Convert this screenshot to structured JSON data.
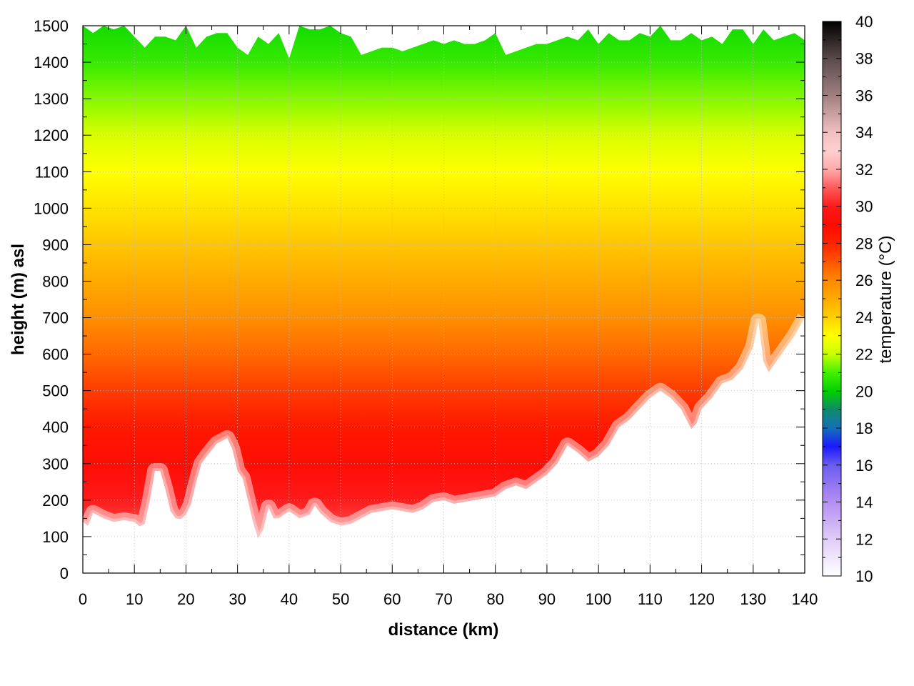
{
  "chart_data": {
    "type": "heatmap",
    "title": "",
    "xlabel": "distance (km)",
    "ylabel": "height (m) asl",
    "colorbar_label": "temperature (°C)",
    "xlim": [
      0,
      140
    ],
    "ylim": [
      0,
      1500
    ],
    "clim": [
      10,
      40
    ],
    "x_ticks": [
      0,
      10,
      20,
      30,
      40,
      50,
      60,
      70,
      80,
      90,
      100,
      110,
      120,
      130,
      140
    ],
    "y_ticks": [
      0,
      100,
      200,
      300,
      400,
      500,
      600,
      700,
      800,
      900,
      1000,
      1100,
      1200,
      1300,
      1400,
      1500
    ],
    "colorbar_ticks": [
      10,
      12,
      14,
      16,
      18,
      20,
      22,
      24,
      26,
      28,
      30,
      32,
      34,
      36,
      38,
      40
    ],
    "grid": true,
    "lower_boundary": {
      "distance_km": [
        0,
        1,
        2,
        4,
        6,
        8,
        10,
        11,
        12,
        13,
        14,
        15,
        16,
        17,
        18,
        19,
        20,
        21,
        22,
        23,
        24,
        26,
        28,
        29,
        30,
        31,
        32,
        33,
        34,
        35,
        36,
        37,
        38,
        39,
        40,
        42,
        44,
        45,
        46,
        48,
        50,
        52,
        54,
        56,
        58,
        60,
        62,
        64,
        66,
        68,
        70,
        72,
        74,
        76,
        78,
        80,
        82,
        84,
        86,
        88,
        90,
        92,
        94,
        96,
        98,
        100,
        102,
        104,
        106,
        108,
        110,
        112,
        114,
        116,
        118,
        119,
        120,
        122,
        124,
        126,
        128,
        130,
        131,
        132,
        133,
        134,
        136,
        138,
        140
      ],
      "height_m": [
        140,
        130,
        165,
        150,
        140,
        145,
        140,
        128,
        135,
        200,
        280,
        280,
        230,
        170,
        150,
        148,
        160,
        190,
        250,
        300,
        320,
        355,
        370,
        340,
        280,
        260,
        200,
        140,
        95,
        120,
        180,
        150,
        150,
        160,
        170,
        150,
        160,
        185,
        165,
        140,
        130,
        135,
        150,
        165,
        170,
        175,
        170,
        165,
        175,
        195,
        200,
        190,
        195,
        200,
        205,
        210,
        230,
        240,
        230,
        250,
        270,
        300,
        350,
        330,
        305,
        320,
        350,
        400,
        420,
        450,
        480,
        500,
        480,
        450,
        395,
        410,
        450,
        480,
        520,
        530,
        560,
        620,
        690,
        580,
        550,
        570,
        610,
        650,
        700
      ]
    },
    "upper_boundary": {
      "distance_km": [
        0,
        2,
        4,
        6,
        8,
        10,
        12,
        14,
        16,
        18,
        20,
        22,
        24,
        26,
        28,
        30,
        32,
        34,
        36,
        38,
        40,
        42,
        44,
        46,
        48,
        50,
        52,
        54,
        56,
        58,
        60,
        62,
        64,
        66,
        68,
        70,
        72,
        74,
        76,
        78,
        80,
        82,
        84,
        86,
        88,
        90,
        92,
        94,
        96,
        98,
        100,
        102,
        104,
        106,
        108,
        110,
        112,
        114,
        116,
        118,
        120,
        122,
        124,
        126,
        128,
        130,
        132,
        134,
        136,
        138,
        140
      ],
      "height_m": [
        1500,
        1480,
        1500,
        1490,
        1500,
        1470,
        1440,
        1470,
        1470,
        1460,
        1500,
        1440,
        1470,
        1480,
        1480,
        1440,
        1420,
        1470,
        1450,
        1480,
        1410,
        1500,
        1490,
        1490,
        1500,
        1480,
        1470,
        1420,
        1430,
        1440,
        1440,
        1430,
        1440,
        1450,
        1460,
        1450,
        1460,
        1450,
        1450,
        1460,
        1480,
        1420,
        1430,
        1440,
        1450,
        1450,
        1460,
        1470,
        1460,
        1490,
        1450,
        1480,
        1460,
        1460,
        1480,
        1470,
        1500,
        1460,
        1460,
        1480,
        1460,
        1470,
        1450,
        1490,
        1490,
        1450,
        1490,
        1460,
        1470,
        1480,
        1460
      ]
    },
    "layers": [
      {
        "height_m": 100,
        "temperature_c": 31
      },
      {
        "height_m": 200,
        "temperature_c": 30
      },
      {
        "height_m": 300,
        "temperature_c": 29.2
      },
      {
        "height_m": 400,
        "temperature_c": 28.4
      },
      {
        "height_m": 500,
        "temperature_c": 27.5
      },
      {
        "height_m": 600,
        "temperature_c": 26.6
      },
      {
        "height_m": 700,
        "temperature_c": 25.8
      },
      {
        "height_m": 800,
        "temperature_c": 25
      },
      {
        "height_m": 900,
        "temperature_c": 24.3
      },
      {
        "height_m": 1000,
        "temperature_c": 23.6
      },
      {
        "height_m": 1100,
        "temperature_c": 23
      },
      {
        "height_m": 1200,
        "temperature_c": 22.3
      },
      {
        "height_m": 1300,
        "temperature_c": 21.5
      },
      {
        "height_m": 1400,
        "temperature_c": 20.8
      },
      {
        "height_m": 1500,
        "temperature_c": 20.3
      }
    ],
    "colormap": [
      {
        "t": 10,
        "color": "#ffffff"
      },
      {
        "t": 12,
        "color": "#e0ccf8"
      },
      {
        "t": 14,
        "color": "#b58ef2"
      },
      {
        "t": 16,
        "color": "#6b5cf0"
      },
      {
        "t": 17,
        "color": "#1a1aff"
      },
      {
        "t": 18,
        "color": "#1470b8"
      },
      {
        "t": 19,
        "color": "#0f8a6a"
      },
      {
        "t": 20,
        "color": "#00d000"
      },
      {
        "t": 21,
        "color": "#44f000"
      },
      {
        "t": 22,
        "color": "#c8ff00"
      },
      {
        "t": 23,
        "color": "#ffff00"
      },
      {
        "t": 24,
        "color": "#ffd000"
      },
      {
        "t": 25,
        "color": "#ffaa00"
      },
      {
        "t": 26,
        "color": "#ff8800"
      },
      {
        "t": 27,
        "color": "#ff5500"
      },
      {
        "t": 28,
        "color": "#ff2200"
      },
      {
        "t": 29,
        "color": "#ff0a00"
      },
      {
        "t": 30,
        "color": "#ff1a1a"
      },
      {
        "t": 31,
        "color": "#ff5a5a"
      },
      {
        "t": 32,
        "color": "#ffaaaa"
      },
      {
        "t": 33,
        "color": "#ffcfcf"
      },
      {
        "t": 34,
        "color": "#f0c0c0"
      },
      {
        "t": 36,
        "color": "#a07f7f"
      },
      {
        "t": 38,
        "color": "#5a4a4a"
      },
      {
        "t": 40,
        "color": "#000000"
      }
    ]
  }
}
